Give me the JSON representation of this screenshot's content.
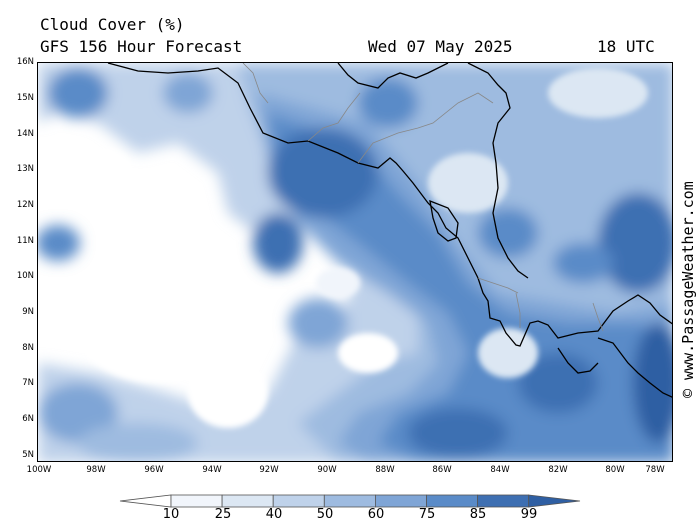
{
  "header": {
    "line1": "Cloud Cover (%)",
    "line2": "GFS 156 Hour Forecast",
    "date": "Wed 07 May 2025",
    "time": "18 UTC"
  },
  "axes": {
    "lat_labels": [
      "16N",
      "15N",
      "14N",
      "13N",
      "12N",
      "11N",
      "10N",
      "9N",
      "8N",
      "7N",
      "6N",
      "5N"
    ],
    "lon_labels": [
      "100W",
      "98W",
      "96W",
      "94W",
      "92W",
      "90W",
      "88W",
      "86W",
      "84W",
      "82W",
      "80W",
      "78W"
    ]
  },
  "watermark": "© www.PassageWeather.com",
  "legend": {
    "levels": [
      "10",
      "25",
      "40",
      "50",
      "60",
      "75",
      "85",
      "99"
    ],
    "colors": [
      "#ffffff",
      "#f1f5fb",
      "#dce7f3",
      "#bfd2ea",
      "#9ebbe0",
      "#7fa5d6",
      "#5a8bc8",
      "#3e6fb2",
      "#2f5fa3"
    ]
  }
}
